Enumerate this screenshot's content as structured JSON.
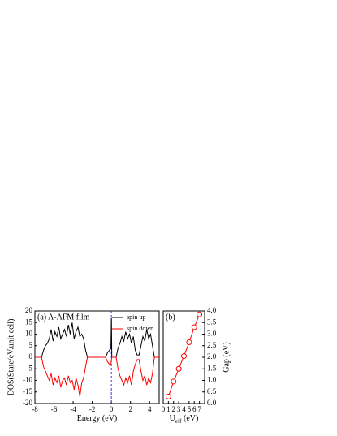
{
  "chart_data": [
    {
      "type": "line",
      "annotation": "(a) A-AFM film",
      "x_label": "Energy (eV)",
      "y_label": "DOS(State/eV.unit cell)",
      "x": [
        -8,
        -7.3,
        -7.1,
        -6.9,
        -6.7,
        -6.5,
        -6.3,
        -6.1,
        -5.9,
        -5.7,
        -5.5,
        -5.3,
        -5.1,
        -4.9,
        -4.7,
        -4.5,
        -4.3,
        -4.1,
        -3.9,
        -3.7,
        -3.5,
        -3.3,
        -3.1,
        -2.9,
        -2.7,
        -2.5,
        -0.6,
        -0.4,
        -0.2,
        -0.05,
        0,
        0.05,
        0.2,
        0.5,
        0.7,
        0.9,
        1.1,
        1.3,
        1.5,
        1.7,
        1.9,
        2.1,
        2.3,
        2.5,
        2.7,
        2.9,
        3.1,
        3.3,
        3.5,
        3.7,
        3.9,
        4.1,
        4.3,
        4.5,
        5
      ],
      "series": [
        {
          "name": "spin up",
          "color": "#000000",
          "values": [
            0,
            0,
            3,
            5,
            6,
            8,
            12,
            7,
            11,
            9,
            13,
            8,
            10,
            12,
            9,
            14,
            10,
            15,
            8,
            11,
            13,
            9,
            10,
            8,
            3,
            0,
            0,
            2,
            3,
            4,
            17,
            0,
            0,
            0,
            4,
            6,
            9,
            7,
            11,
            8,
            10,
            6,
            9,
            3,
            1,
            1,
            5,
            9,
            7,
            12,
            8,
            10,
            5,
            0,
            0
          ]
        },
        {
          "name": "spin down",
          "color": "#ff0000",
          "values": [
            0,
            0,
            -4,
            -6,
            -8,
            -10,
            -7,
            -12,
            -9,
            -11,
            -8,
            -13,
            -10,
            -9,
            -12,
            -8,
            -11,
            -10,
            -14,
            -9,
            -12,
            -17,
            -11,
            -9,
            -4,
            0,
            0,
            -2,
            -3,
            -3,
            -1,
            0,
            0,
            0,
            -5,
            -8,
            -10,
            -12,
            -9,
            -11,
            -8,
            -12,
            -6,
            -3,
            -1,
            -1,
            -6,
            -10,
            -8,
            -12,
            -9,
            -11,
            -7,
            0,
            0
          ]
        }
      ],
      "fermi_level": 0,
      "fermi_color": "#3333ff",
      "xlim": [
        -8,
        5
      ],
      "xticks": [
        -8,
        -6,
        -4,
        -2,
        0,
        2,
        4
      ],
      "ylim": [
        -20,
        20
      ],
      "yticks": [
        -20,
        -15,
        -10,
        -5,
        0,
        5,
        10,
        15,
        20
      ],
      "legend": "upper right"
    },
    {
      "type": "line",
      "annotation": "(b)",
      "x_label": "U",
      "x_label_sub": "eff",
      "x_label_unit": " (eV)",
      "y_label": "Gap (eV)",
      "x": [
        1,
        2,
        3,
        4,
        5,
        6,
        7
      ],
      "series": [
        {
          "color": "#ff0000",
          "axis": "y2",
          "values": [
            0.3,
            0.95,
            1.5,
            2.05,
            2.65,
            3.3,
            3.85
          ]
        }
      ],
      "xlim": [
        0,
        8
      ],
      "xticks": [
        0,
        1,
        2,
        3,
        4,
        5,
        6,
        7
      ],
      "y2lim": [
        0,
        4
      ],
      "y2ticks": [
        {
          "value": 0,
          "label": "0.0"
        },
        0.5,
        {
          "value": 1,
          "label": "1.0"
        },
        1.5,
        {
          "value": 2,
          "label": "2.0"
        },
        2.5,
        {
          "value": 3,
          "label": "3.0"
        },
        3.5,
        {
          "value": 4,
          "label": "4.0"
        }
      ],
      "marker": "open-circle"
    }
  ]
}
